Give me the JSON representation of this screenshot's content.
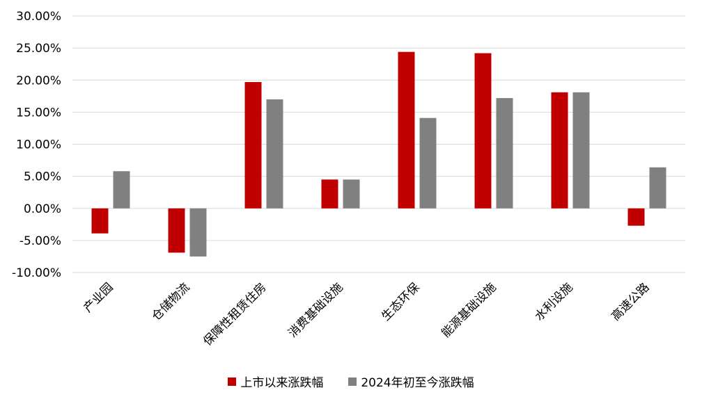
{
  "chart_data": {
    "type": "bar",
    "categories": [
      "产业园",
      "仓储物流",
      "保障性租赁住房",
      "消费基础设施",
      "生态环保",
      "能源基础设施",
      "水利设施",
      "高速公路"
    ],
    "series": [
      {
        "name": "上市以来涨跌幅",
        "color": "#C00000",
        "values": [
          -3.9,
          -6.9,
          19.7,
          4.5,
          24.4,
          24.2,
          18.1,
          -2.7
        ]
      },
      {
        "name": "2024年初至今涨跌幅",
        "color": "#808080",
        "values": [
          5.8,
          -7.5,
          17.0,
          4.5,
          14.1,
          17.2,
          18.1,
          6.4
        ]
      }
    ],
    "ylim": [
      -10,
      30
    ],
    "yticks": [
      30,
      25,
      20,
      15,
      10,
      5,
      0,
      -5,
      -10
    ],
    "ytick_labels": [
      "30.00%",
      "25.00%",
      "20.00%",
      "15.00%",
      "10.00%",
      "5.00%",
      "0.00%",
      "-5.00%",
      "-10.00%"
    ],
    "grid": true,
    "legend_position": "bottom"
  }
}
